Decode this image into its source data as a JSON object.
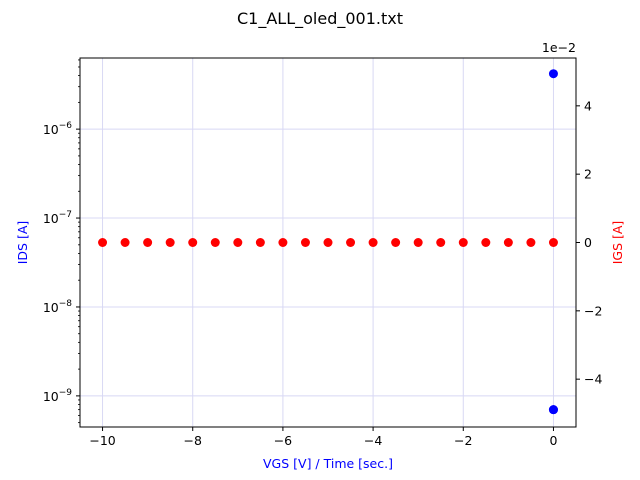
{
  "chart_data": {
    "type": "scatter",
    "title": "C1_ALL_oled_001.txt",
    "xlabel": "VGS [V] / Time [sec.]",
    "ylabel_left": "IDS [A]",
    "ylabel_right": "IGS [A]",
    "right_axis_multiplier": "1e−2",
    "xlim": [
      -10.5,
      0.5
    ],
    "ylim_left_log10": [
      -9.35,
      -5.2
    ],
    "ylim_right": [
      -0.054,
      0.054
    ],
    "x_ticks": [
      -10,
      -8,
      -6,
      -4,
      -2,
      0
    ],
    "x_tick_labels": [
      "−10",
      "−8",
      "−6",
      "−4",
      "−2",
      "0"
    ],
    "left_major_exponents": [
      -9,
      -8,
      -7,
      -6
    ],
    "left_tick_labels": [
      {
        "base": "10",
        "exp": "−9"
      },
      {
        "base": "10",
        "exp": "−8"
      },
      {
        "base": "10",
        "exp": "−7"
      },
      {
        "base": "10",
        "exp": "−6"
      }
    ],
    "right_ticks": [
      -0.04,
      -0.02,
      0,
      0.02,
      0.04
    ],
    "right_tick_labels": [
      "−4",
      "−2",
      "0",
      "2",
      "4"
    ],
    "grid": true,
    "series": [
      {
        "name": "IDS",
        "axis": "left",
        "color": "#0000ff",
        "points": [
          {
            "x": 0,
            "y": 4.2e-06
          },
          {
            "x": 0,
            "y": 7e-10
          },
          {
            "x": 0,
            "y": 7e-10
          }
        ]
      },
      {
        "name": "IGS",
        "axis": "right",
        "color": "#ff0000",
        "x": [
          -10,
          -9.5,
          -9,
          -8.5,
          -8,
          -7.5,
          -7,
          -6.5,
          -6,
          -5.5,
          -5,
          -4.5,
          -4,
          -3.5,
          -3,
          -2.5,
          -2,
          -1.5,
          -1,
          -0.5,
          0
        ],
        "y": [
          0,
          0,
          0,
          0,
          0,
          0,
          0,
          0,
          0,
          0,
          0,
          0,
          0,
          0,
          0,
          0,
          0,
          0,
          0,
          0,
          0
        ]
      }
    ]
  }
}
